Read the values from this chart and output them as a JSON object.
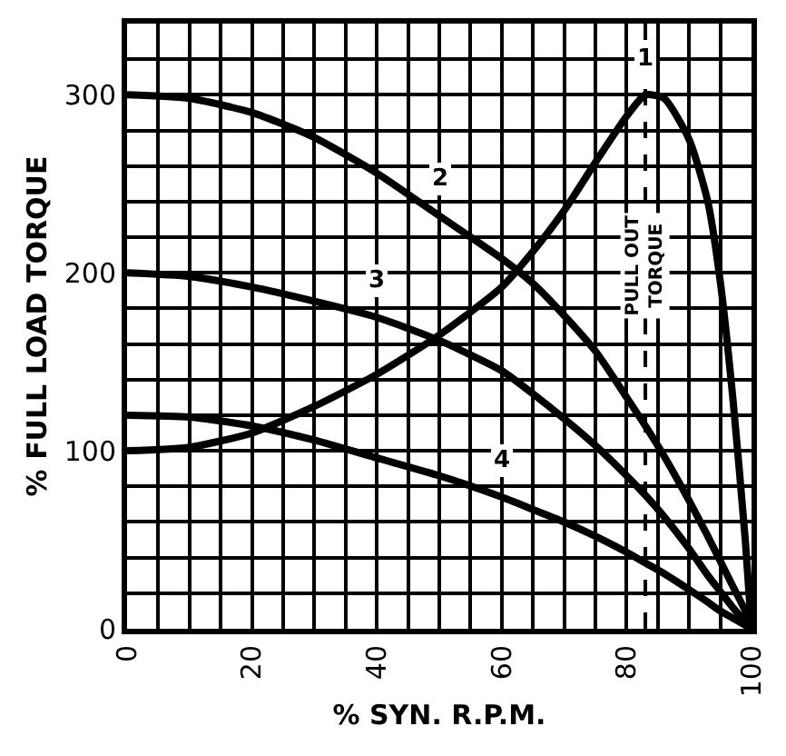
{
  "chart_data": {
    "type": "line",
    "xlabel": "% SYN. R.P.M.",
    "ylabel": "% FULL LOAD TORQUE",
    "x": [
      0,
      10,
      20,
      30,
      40,
      50,
      60,
      65,
      70,
      75,
      80,
      83,
      86,
      90,
      93,
      95,
      97,
      99,
      100
    ],
    "series": [
      {
        "color": "#000000",
        "values": [
          100,
          102,
          110,
          125,
          143,
          165,
          192,
          212,
          235,
          262,
          288,
          300,
          298,
          275,
          240,
          195,
          130,
          50,
          0
        ]
      },
      {
        "color": "#000000",
        "values": [
          300,
          298,
          290,
          276,
          256,
          232,
          208,
          194,
          176,
          156,
          130,
          114,
          97,
          72,
          52,
          38,
          24,
          10,
          0
        ]
      },
      {
        "color": "#000000",
        "values": [
          200,
          198,
          192,
          184,
          175,
          162,
          145,
          132,
          118,
          103,
          86,
          75,
          63,
          45,
          30,
          21,
          12,
          4,
          0
        ]
      },
      {
        "color": "#000000",
        "values": [
          120,
          119,
          114,
          106,
          96,
          86,
          74,
          67,
          60,
          52,
          43,
          37,
          31,
          22,
          15,
          10,
          6,
          2,
          0
        ]
      }
    ],
    "annotations": [
      {
        "text": "1",
        "x": 83,
        "y": 300
      },
      {
        "text": "2",
        "x": 50,
        "y": 232
      },
      {
        "text": "3",
        "x": 40,
        "y": 175
      },
      {
        "text": "4",
        "x": 60,
        "y": 74
      }
    ],
    "ref_lines": [
      {
        "axis": "x",
        "value": 83,
        "label": "PULL OUT TORQUE",
        "line_style": "dashed",
        "color": "#000000"
      }
    ],
    "xlim": [
      0,
      100
    ],
    "ylim": [
      0,
      340
    ],
    "xticks": [
      0,
      20,
      40,
      60,
      80,
      100
    ],
    "yticks": [
      0,
      100,
      200,
      300
    ],
    "grid": true,
    "line_style": "solid",
    "legend": false
  }
}
